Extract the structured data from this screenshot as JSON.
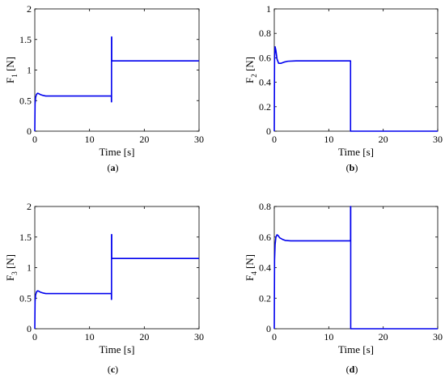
{
  "chart_data": [
    {
      "type": "line",
      "panel": "a",
      "ylabel": "F",
      "ylabel_sub": "1",
      "ylabel_unit": "[N]",
      "xlabel": "Time [s]",
      "xlim": [
        0,
        30
      ],
      "ylim": [
        0,
        2
      ],
      "xticks": [
        0,
        10,
        20,
        30
      ],
      "yticks": [
        "0",
        "0.5",
        "1",
        "1.5",
        "2"
      ],
      "ytick_values": [
        0,
        0.5,
        1,
        1.5,
        2
      ],
      "caption": "a",
      "series": [
        {
          "color": "#0000ee",
          "x": [
            0,
            0.05,
            0.15,
            0.3,
            0.5,
            0.7,
            1.0,
            1.5,
            2.0,
            3.0,
            5.0,
            8.0,
            11.0,
            13.9,
            14.0,
            14.0,
            14.02,
            14.02,
            14.05,
            14.05,
            14.2,
            16,
            20,
            25,
            30
          ],
          "y": [
            0,
            0.45,
            0.55,
            0.6,
            0.62,
            0.615,
            0.6,
            0.585,
            0.575,
            0.575,
            0.575,
            0.575,
            0.575,
            0.575,
            0.575,
            0.48,
            0.48,
            1.54,
            1.54,
            1.15,
            1.15,
            1.15,
            1.15,
            1.15,
            1.15
          ]
        }
      ]
    },
    {
      "type": "line",
      "panel": "b",
      "ylabel": "F",
      "ylabel_sub": "2",
      "ylabel_unit": "[N]",
      "xlabel": "Time [s]",
      "xlim": [
        0,
        30
      ],
      "ylim": [
        0,
        1
      ],
      "xticks": [
        0,
        10,
        20,
        30
      ],
      "yticks": [
        "0",
        "0.2",
        "0.4",
        "0.6",
        "0.8",
        "1"
      ],
      "ytick_values": [
        0,
        0.2,
        0.4,
        0.6,
        0.8,
        1
      ],
      "caption": "b",
      "series": [
        {
          "color": "#0000ee",
          "x": [
            0,
            0.05,
            0.15,
            0.3,
            0.5,
            0.8,
            1.2,
            1.8,
            2.5,
            4,
            8,
            12,
            13.95,
            14.0,
            14.0,
            16,
            20,
            25,
            30
          ],
          "y": [
            0,
            0.6,
            0.69,
            0.66,
            0.59,
            0.555,
            0.555,
            0.565,
            0.572,
            0.575,
            0.575,
            0.575,
            0.575,
            0.575,
            0.0,
            0.0,
            0.0,
            0.0,
            0.0
          ]
        }
      ]
    },
    {
      "type": "line",
      "panel": "c",
      "ylabel": "F",
      "ylabel_sub": "3",
      "ylabel_unit": "[N]",
      "xlabel": "Time [s]",
      "xlim": [
        0,
        30
      ],
      "ylim": [
        0,
        2
      ],
      "xticks": [
        0,
        10,
        20,
        30
      ],
      "yticks": [
        "0",
        "0.5",
        "1",
        "1.5",
        "2"
      ],
      "ytick_values": [
        0,
        0.5,
        1,
        1.5,
        2
      ],
      "caption": "c",
      "series": [
        {
          "color": "#0000ee",
          "x": [
            0,
            0.05,
            0.15,
            0.3,
            0.5,
            0.7,
            1.0,
            1.5,
            2.0,
            3.0,
            5.0,
            8.0,
            11.0,
            13.9,
            14.0,
            14.0,
            14.02,
            14.02,
            14.05,
            14.05,
            14.2,
            16,
            20,
            25,
            30
          ],
          "y": [
            0,
            0.45,
            0.55,
            0.6,
            0.62,
            0.615,
            0.6,
            0.585,
            0.575,
            0.575,
            0.575,
            0.575,
            0.575,
            0.575,
            0.575,
            0.48,
            0.48,
            1.54,
            1.54,
            1.15,
            1.15,
            1.15,
            1.15,
            1.15,
            1.15
          ]
        }
      ]
    },
    {
      "type": "line",
      "panel": "d",
      "ylabel": "F",
      "ylabel_sub": "4",
      "ylabel_unit": "[N]",
      "xlabel": "Time [s]",
      "xlim": [
        0,
        30
      ],
      "ylim": [
        0,
        0.8
      ],
      "xticks": [
        0,
        10,
        20,
        30
      ],
      "yticks": [
        "0",
        "0.2",
        "0.4",
        "0.6",
        "0.8"
      ],
      "ytick_values": [
        0,
        0.2,
        0.4,
        0.6,
        0.8
      ],
      "caption": "d",
      "series": [
        {
          "color": "#0000ee",
          "x": [
            0,
            0.05,
            0.15,
            0.3,
            0.5,
            0.7,
            1.0,
            1.5,
            2.0,
            3.0,
            6.0,
            10.0,
            13.9,
            14.0,
            14.0,
            14.03,
            14.03,
            16,
            20,
            25,
            30
          ],
          "y": [
            0,
            0.45,
            0.55,
            0.6,
            0.615,
            0.61,
            0.595,
            0.585,
            0.578,
            0.575,
            0.575,
            0.575,
            0.575,
            0.575,
            0.8,
            0.8,
            0.0,
            0.0,
            0.0,
            0.0,
            0.0
          ]
        }
      ]
    }
  ],
  "captions": [
    "a",
    "b",
    "c",
    "d"
  ]
}
